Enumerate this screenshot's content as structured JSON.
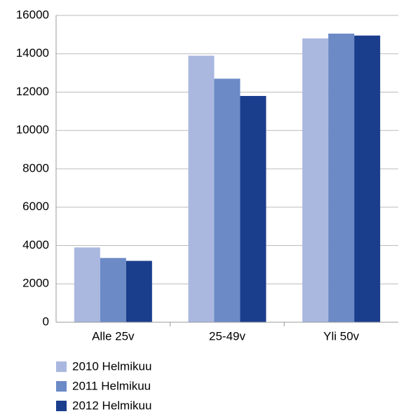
{
  "chart_data": {
    "type": "bar",
    "categories": [
      "Alle 25v",
      "25-49v",
      "Yli 50v"
    ],
    "series": [
      {
        "name": "2010 Helmikuu",
        "color": "#aab8e0",
        "values": [
          3900,
          13900,
          14800
        ]
      },
      {
        "name": "2011 Helmikuu",
        "color": "#6b8ac6",
        "values": [
          3350,
          12700,
          15050
        ]
      },
      {
        "name": "2012 Helmikuu",
        "color": "#1a3d8c",
        "values": [
          3200,
          11800,
          14950
        ]
      }
    ],
    "ylim": [
      0,
      16000
    ],
    "yticks": [
      0,
      2000,
      4000,
      6000,
      8000,
      10000,
      12000,
      14000,
      16000
    ],
    "grid": true,
    "legend": "bottom"
  }
}
